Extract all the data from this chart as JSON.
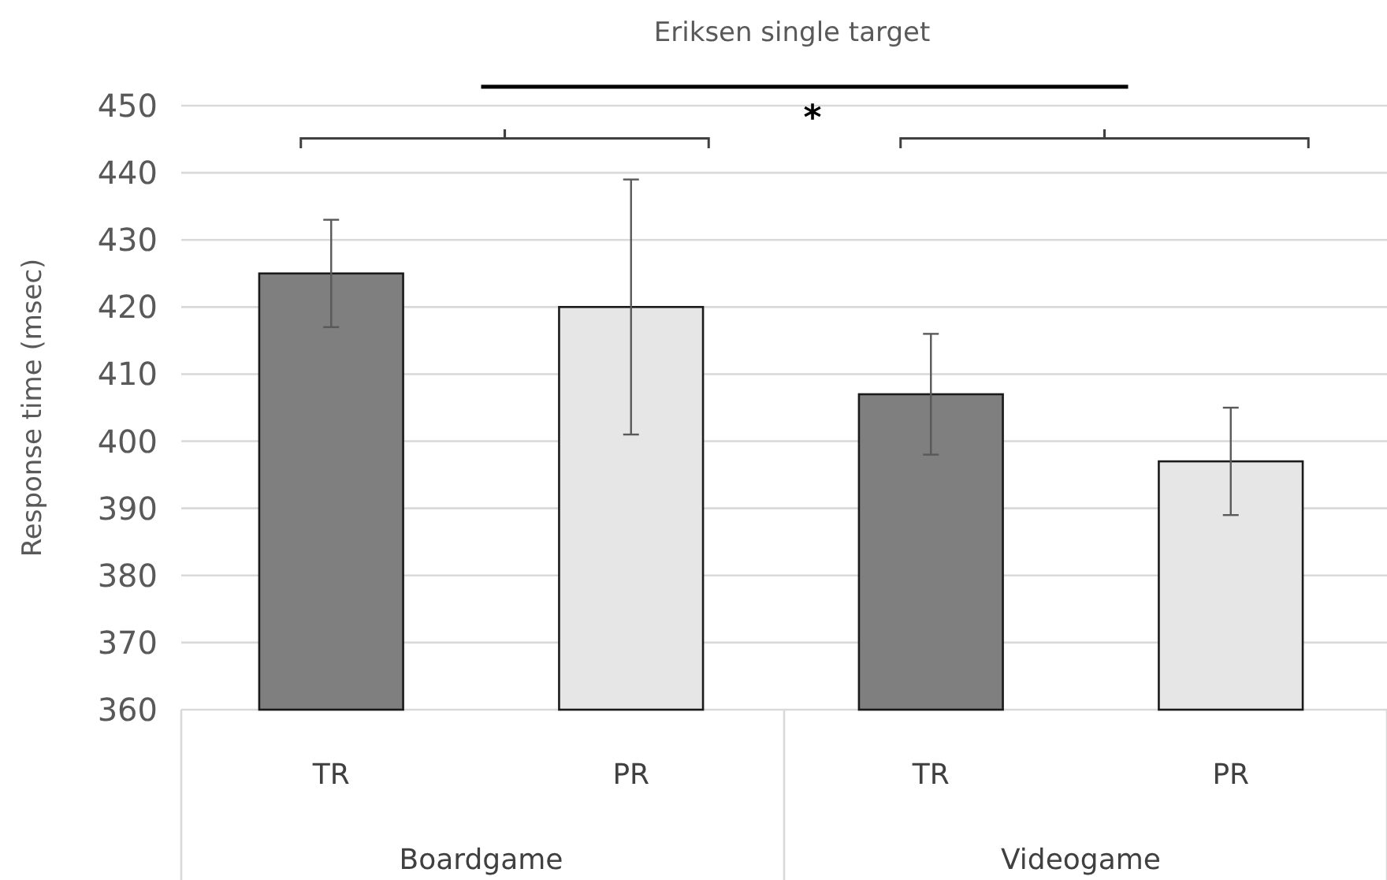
{
  "chart_data": {
    "type": "bar",
    "title": "Eriksen single target",
    "ylabel": "Response time (msec)",
    "categories": [
      "TR",
      "PR",
      "TR",
      "PR"
    ],
    "values": [
      425,
      420,
      407,
      397
    ],
    "colors": [
      "#7f7f7f",
      "#e6e6e6",
      "#7f7f7f",
      "#e6e6e6"
    ],
    "errors": [
      [
        417,
        433
      ],
      [
        401,
        439
      ],
      [
        398,
        416
      ],
      [
        389,
        405
      ]
    ],
    "ylim": [
      360,
      450
    ],
    "yticks": [
      360,
      370,
      380,
      390,
      400,
      410,
      420,
      430,
      440,
      450
    ],
    "grid": "y",
    "annotations": [
      "*",
      "Boardgame",
      "Videogame"
    ]
  }
}
